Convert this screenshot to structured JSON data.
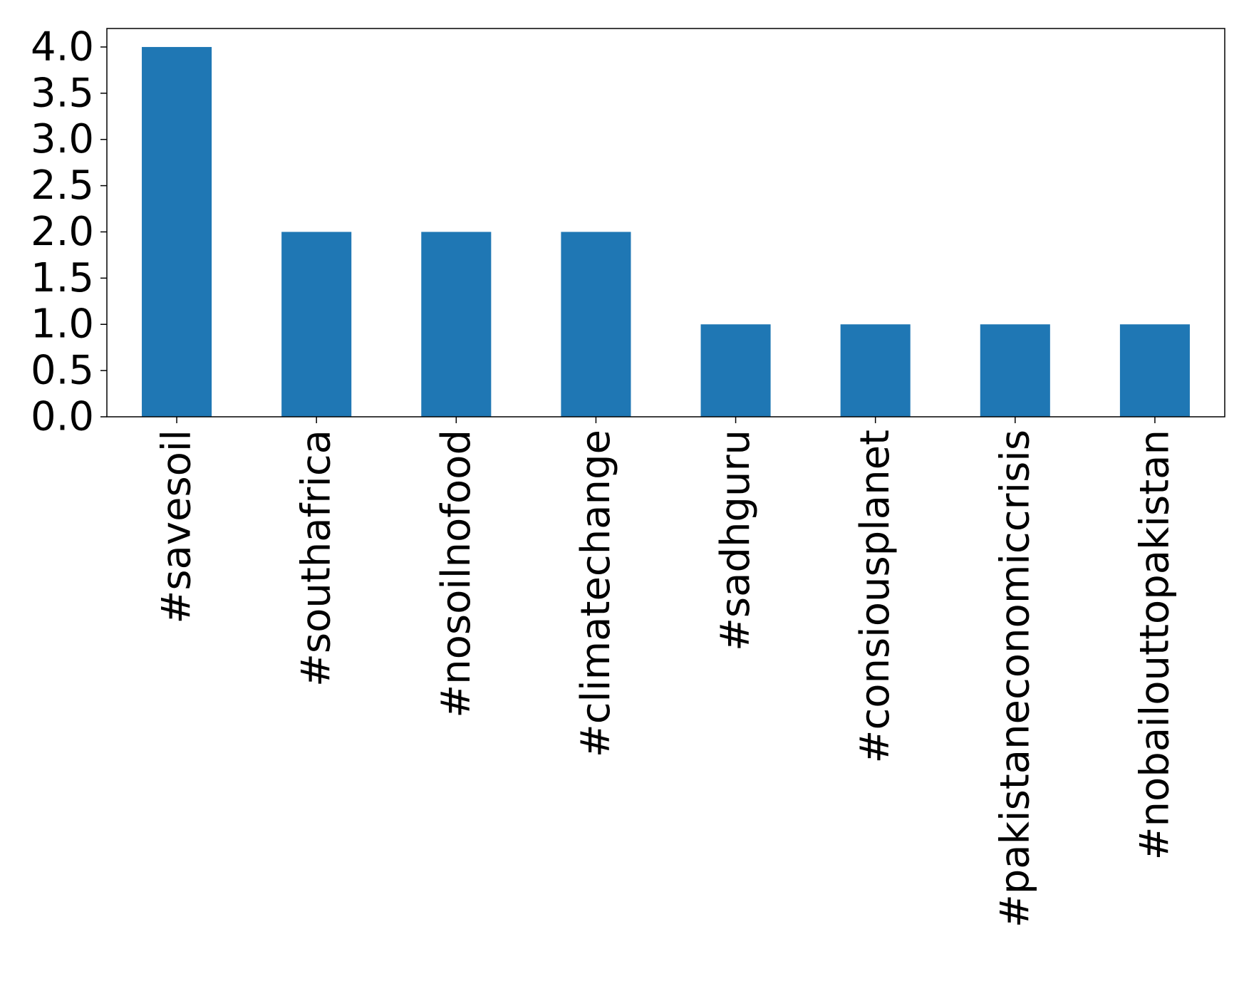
{
  "chart_data": {
    "type": "bar",
    "categories": [
      "#savesoil",
      "#southafrica",
      "#nosoilnofood",
      "#climatechange",
      "#sadhguru",
      "#consiousplanet",
      "#pakistaneconomiccrisis",
      "#nobailouttopakistan"
    ],
    "values": [
      4,
      2,
      2,
      2,
      1,
      1,
      1,
      1
    ],
    "color": "#1f77b4",
    "ylim": [
      0,
      4.2
    ],
    "yticks": [
      {
        "value": 0,
        "label": "0.0"
      },
      0.5,
      {
        "value": 1,
        "label": "1.0"
      },
      1.5,
      {
        "value": 2,
        "label": "2.0"
      },
      2.5,
      {
        "value": 3,
        "label": "3.0"
      },
      3.5,
      {
        "value": 4,
        "label": "4.0"
      }
    ],
    "grid": false
  }
}
